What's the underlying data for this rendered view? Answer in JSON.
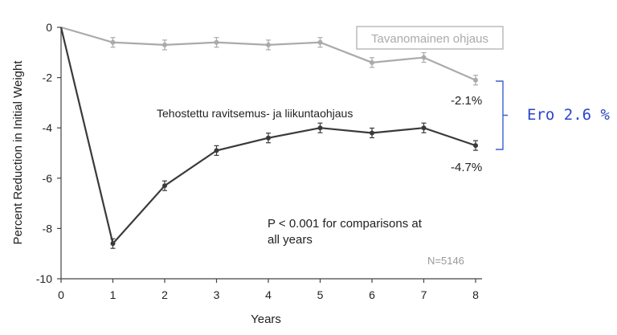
{
  "chart_data": {
    "type": "line",
    "xlabel": "Years",
    "ylabel": "Percent Reduction in Initial Weight",
    "xlim": [
      0,
      8
    ],
    "ylim": [
      -10,
      0
    ],
    "x_ticks": [
      "0",
      "1",
      "2",
      "3",
      "4",
      "5",
      "6",
      "7",
      "8"
    ],
    "y_ticks": [
      "0",
      "-2",
      "-4",
      "-6",
      "-8",
      "-10"
    ],
    "grid": false,
    "series": [
      {
        "name": "Tavanomainen ohjaus",
        "color": "#aaaaaa",
        "x": [
          0,
          1,
          2,
          3,
          4,
          5,
          6,
          7,
          8
        ],
        "values": [
          0,
          -0.6,
          -0.7,
          -0.6,
          -0.7,
          -0.6,
          -1.4,
          -1.2,
          -2.1
        ],
        "end_label": "-2.1%"
      },
      {
        "name": "Tehostettu ravitsemus- ja liikuntaohjaus",
        "color": "#3a3a3a",
        "x": [
          0,
          1,
          2,
          3,
          4,
          5,
          6,
          7,
          8
        ],
        "values": [
          0,
          -8.6,
          -6.3,
          -4.9,
          -4.4,
          -4.0,
          -4.2,
          -4.0,
          -4.7
        ],
        "end_label": "-4.7%"
      }
    ],
    "annotations": {
      "p_value_line1": "P < 0.001 for comparisons at",
      "p_value_line2": "all years",
      "n": "N=5146",
      "difference": "Ero 2.6 %"
    }
  }
}
